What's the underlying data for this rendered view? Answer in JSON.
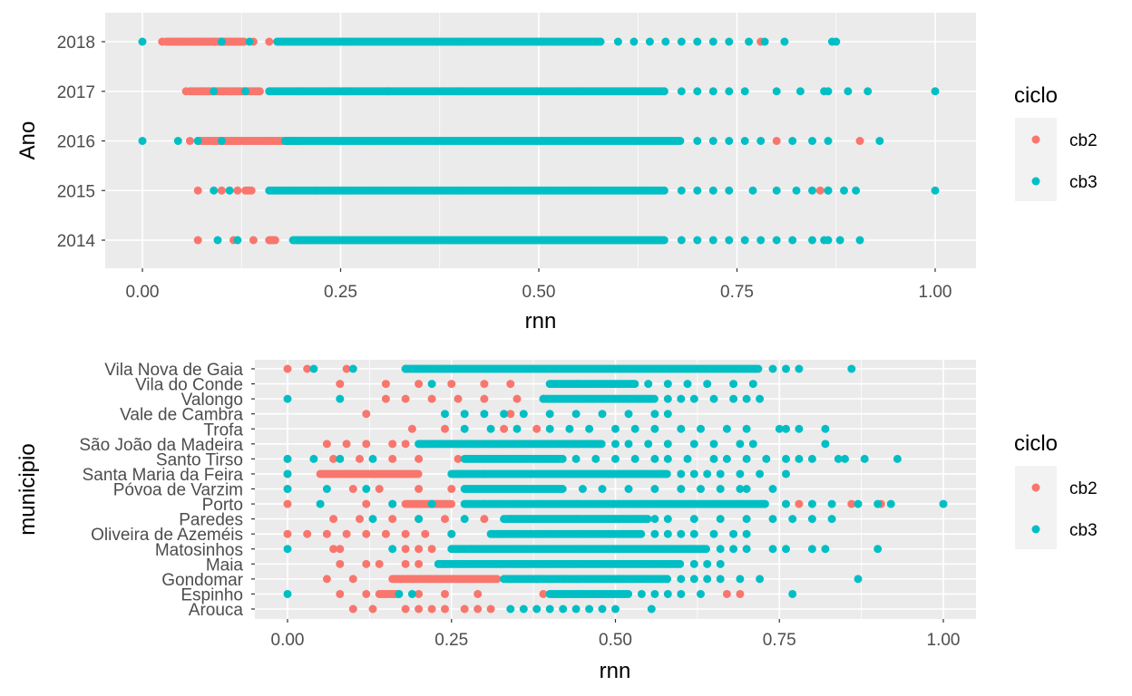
{
  "colors": {
    "cb2": "#F8766D",
    "cb3": "#00BFC4",
    "panel": "#EBEBEB",
    "grid": "#FFFFFF"
  },
  "chart_data": [
    {
      "type": "scatter",
      "xlabel": "rnn",
      "ylabel": "Ano",
      "xlim": [
        0,
        1
      ],
      "x_ticks": [
        "0.00",
        "0.25",
        "0.50",
        "0.75",
        "1.00"
      ],
      "categories": [
        "2014",
        "2015",
        "2016",
        "2017",
        "2018"
      ],
      "grid": true,
      "legend": {
        "title": "ciclo",
        "position": "right",
        "entries": [
          "cb2",
          "cb3"
        ]
      },
      "series": [
        {
          "name": "cb2",
          "dense": [
            {
              "y": "2018",
              "x": [
                0.03,
                0.13
              ]
            },
            {
              "y": "2017",
              "x": [
                0.06,
                0.15
              ]
            },
            {
              "y": "2016",
              "x": [
                0.07,
                0.2
              ]
            },
            {
              "y": "2015",
              "x": [
                0.13,
                0.14
              ]
            },
            {
              "y": "2014",
              "x": [
                0.16,
                0.17
              ]
            }
          ],
          "points": [
            {
              "y": "2018",
              "x": [
                0.025,
                0.05,
                0.07,
                0.1,
                0.14,
                0.16,
                0.78
              ]
            },
            {
              "y": "2017",
              "x": [
                0.055,
                0.075,
                0.1,
                0.12,
                0.2,
                0.24,
                0.31
              ]
            },
            {
              "y": "2016",
              "x": [
                0.06,
                0.12,
                0.16,
                0.24,
                0.29,
                0.36,
                0.8,
                0.905
              ]
            },
            {
              "y": "2015",
              "x": [
                0.07,
                0.1,
                0.12,
                0.22,
                0.855
              ]
            },
            {
              "y": "2014",
              "x": [
                0.07,
                0.115,
                0.14,
                0.21,
                0.24
              ]
            }
          ]
        },
        {
          "name": "cb3",
          "dense": [
            {
              "y": "2018",
              "x": [
                0.17,
                0.58
              ]
            },
            {
              "y": "2017",
              "x": [
                0.16,
                0.66
              ]
            },
            {
              "y": "2016",
              "x": [
                0.18,
                0.68
              ]
            },
            {
              "y": "2015",
              "x": [
                0.16,
                0.66
              ]
            },
            {
              "y": "2014",
              "x": [
                0.19,
                0.66
              ]
            }
          ],
          "points": [
            {
              "y": "2018",
              "x": [
                0.0,
                0.1,
                0.135,
                0.6,
                0.62,
                0.64,
                0.66,
                0.68,
                0.7,
                0.72,
                0.74,
                0.765,
                0.785,
                0.81,
                0.87,
                0.875
              ]
            },
            {
              "y": "2017",
              "x": [
                0.09,
                0.13,
                0.68,
                0.7,
                0.72,
                0.74,
                0.76,
                0.8,
                0.83,
                0.86,
                0.89,
                0.915,
                0.865,
                1.0
              ]
            },
            {
              "y": "2016",
              "x": [
                0.0,
                0.045,
                0.07,
                0.1,
                0.7,
                0.72,
                0.74,
                0.76,
                0.78,
                0.82,
                0.845,
                0.865,
                0.93
              ]
            },
            {
              "y": "2015",
              "x": [
                0.09,
                0.11,
                0.68,
                0.7,
                0.72,
                0.74,
                0.77,
                0.8,
                0.825,
                0.845,
                0.865,
                0.885,
                0.9,
                0.865,
                1.0
              ]
            },
            {
              "y": "2014",
              "x": [
                0.095,
                0.12,
                0.68,
                0.7,
                0.72,
                0.74,
                0.76,
                0.78,
                0.8,
                0.82,
                0.845,
                0.865,
                0.88,
                0.86,
                0.905
              ]
            }
          ]
        }
      ]
    },
    {
      "type": "scatter",
      "xlabel": "rnn",
      "ylabel": "municipio",
      "xlim": [
        0,
        1
      ],
      "x_ticks": [
        "0.00",
        "0.25",
        "0.50",
        "0.75",
        "1.00"
      ],
      "categories": [
        "Arouca",
        "Espinho",
        "Gondomar",
        "Maia",
        "Matosinhos",
        "Oliveira de Azeméis",
        "Paredes",
        "Porto",
        "Póvoa de Varzim",
        "Santa Maria da Feira",
        "Santo Tirso",
        "São João da Madeira",
        "Trofa",
        "Vale de Cambra",
        "Valongo",
        "Vila do Conde",
        "Vila Nova de Gaia"
      ],
      "grid": true,
      "legend": {
        "title": "ciclo",
        "position": "right",
        "entries": [
          "cb2",
          "cb3"
        ]
      },
      "series": [
        {
          "name": "cb2",
          "dense": [
            {
              "y": "Gondomar",
              "x": [
                0.16,
                0.32
              ]
            },
            {
              "y": "Porto",
              "x": [
                0.18,
                0.25
              ]
            },
            {
              "y": "Santa Maria da Feira",
              "x": [
                0.05,
                0.2
              ]
            },
            {
              "y": "Espinho",
              "x": [
                0.14,
                0.17
              ]
            }
          ],
          "points": [
            {
              "y": "Arouca",
              "x": [
                0.1,
                0.13,
                0.18,
                0.2,
                0.22,
                0.24,
                0.27,
                0.29,
                0.31
              ]
            },
            {
              "y": "Espinho",
              "x": [
                0.08,
                0.12,
                0.2,
                0.24,
                0.29,
                0.39,
                0.67,
                0.69
              ]
            },
            {
              "y": "Gondomar",
              "x": [
                0.06,
                0.1,
                0.34,
                0.38,
                0.42
              ]
            },
            {
              "y": "Maia",
              "x": [
                0.08,
                0.12,
                0.14,
                0.18,
                0.2,
                0.24
              ]
            },
            {
              "y": "Matosinhos",
              "x": [
                0.07,
                0.08,
                0.18,
                0.2,
                0.22,
                0.28
              ]
            },
            {
              "y": "Oliveira de Azeméis",
              "x": [
                0.0,
                0.03,
                0.06,
                0.09,
                0.12,
                0.15,
                0.18,
                0.21,
                0.25,
                0.33
              ]
            },
            {
              "y": "Paredes",
              "x": [
                0.07,
                0.11,
                0.16,
                0.2,
                0.24,
                0.3,
                0.34
              ]
            },
            {
              "y": "Porto",
              "x": [
                0.0,
                0.12,
                0.16,
                0.3,
                0.78,
                0.86,
                0.905
              ]
            },
            {
              "y": "Póvoa de Varzim",
              "x": [
                0.0,
                0.1,
                0.14,
                0.2,
                0.25
              ]
            },
            {
              "y": "Santa Maria da Feira",
              "x": [
                0.0,
                0.26,
                0.3
              ]
            },
            {
              "y": "Santo Tirso",
              "x": [
                0.0,
                0.07,
                0.11,
                0.16,
                0.2,
                0.26
              ]
            },
            {
              "y": "São João da Madeira",
              "x": [
                0.06,
                0.09,
                0.12,
                0.16,
                0.18
              ]
            },
            {
              "y": "Trofa",
              "x": [
                0.19,
                0.24,
                0.33,
                0.38
              ]
            },
            {
              "y": "Vale de Cambra",
              "x": [
                0.12,
                0.34
              ]
            },
            {
              "y": "Valongo",
              "x": [
                0.15,
                0.18,
                0.22,
                0.26,
                0.3,
                0.35,
                0.39
              ]
            },
            {
              "y": "Vila do Conde",
              "x": [
                0.08,
                0.15,
                0.2,
                0.25,
                0.3,
                0.34
              ]
            },
            {
              "y": "Vila Nova de Gaia",
              "x": [
                0.0,
                0.03,
                0.09,
                0.18,
                0.2,
                0.22,
                0.24
              ]
            }
          ]
        },
        {
          "name": "cb3",
          "dense": [
            {
              "y": "Vila Nova de Gaia",
              "x": [
                0.18,
                0.72
              ]
            },
            {
              "y": "Valongo",
              "x": [
                0.39,
                0.56
              ]
            },
            {
              "y": "Porto",
              "x": [
                0.27,
                0.73
              ]
            },
            {
              "y": "Matosinhos",
              "x": [
                0.25,
                0.64
              ]
            },
            {
              "y": "Maia",
              "x": [
                0.23,
                0.6
              ]
            },
            {
              "y": "Gondomar",
              "x": [
                0.33,
                0.58
              ]
            },
            {
              "y": "Santa Maria da Feira",
              "x": [
                0.25,
                0.58
              ]
            },
            {
              "y": "Paredes",
              "x": [
                0.33,
                0.55
              ]
            },
            {
              "y": "Oliveira de Azeméis",
              "x": [
                0.31,
                0.54
              ]
            },
            {
              "y": "São João da Madeira",
              "x": [
                0.2,
                0.48
              ]
            },
            {
              "y": "Santo Tirso",
              "x": [
                0.27,
                0.42
              ]
            },
            {
              "y": "Espinho",
              "x": [
                0.4,
                0.52
              ]
            },
            {
              "y": "Vila do Conde",
              "x": [
                0.4,
                0.53
              ]
            },
            {
              "y": "Póvoa de Varzim",
              "x": [
                0.27,
                0.42
              ]
            }
          ],
          "points": [
            {
              "y": "Arouca",
              "x": [
                0.34,
                0.36,
                0.38,
                0.4,
                0.42,
                0.44,
                0.46,
                0.48,
                0.5,
                0.555
              ]
            },
            {
              "y": "Espinho",
              "x": [
                0.0,
                0.17,
                0.19,
                0.54,
                0.56,
                0.58,
                0.6,
                0.63,
                0.77
              ]
            },
            {
              "y": "Gondomar",
              "x": [
                0.6,
                0.62,
                0.64,
                0.66,
                0.69,
                0.72,
                0.87
              ]
            },
            {
              "y": "Maia",
              "x": [
                0.62,
                0.64,
                0.66
              ]
            },
            {
              "y": "Matosinhos",
              "x": [
                0.0,
                0.16,
                0.66,
                0.68,
                0.7,
                0.74,
                0.76,
                0.8,
                0.82,
                0.9
              ]
            },
            {
              "y": "Oliveira de Azeméis",
              "x": [
                0.25,
                0.56,
                0.58,
                0.6,
                0.62,
                0.65,
                0.68,
                0.7
              ]
            },
            {
              "y": "Paredes",
              "x": [
                0.13,
                0.2,
                0.27,
                0.56,
                0.58,
                0.62,
                0.66,
                0.7,
                0.74,
                0.77,
                0.8,
                0.83
              ]
            },
            {
              "y": "Porto",
              "x": [
                0.05,
                0.16,
                0.22,
                0.76,
                0.8,
                0.83,
                0.87,
                0.9,
                0.92,
                1.0
              ]
            },
            {
              "y": "Póvoa de Varzim",
              "x": [
                0.0,
                0.06,
                0.12,
                0.45,
                0.48,
                0.52,
                0.56,
                0.6,
                0.63,
                0.66,
                0.69,
                0.7,
                0.74
              ]
            },
            {
              "y": "Santa Maria da Feira",
              "x": [
                0.0,
                0.6,
                0.62,
                0.64,
                0.66,
                0.69,
                0.72,
                0.76
              ]
            },
            {
              "y": "Santo Tirso",
              "x": [
                0.0,
                0.04,
                0.08,
                0.13,
                0.44,
                0.47,
                0.5,
                0.53,
                0.56,
                0.58,
                0.61,
                0.65,
                0.67,
                0.7,
                0.73,
                0.76,
                0.78,
                0.8,
                0.84,
                0.85,
                0.88,
                0.93
              ]
            },
            {
              "y": "São João da Madeira",
              "x": [
                0.5,
                0.52,
                0.55,
                0.58,
                0.62,
                0.65,
                0.69,
                0.71,
                0.82
              ]
            },
            {
              "y": "Trofa",
              "x": [
                0.27,
                0.31,
                0.35,
                0.4,
                0.43,
                0.46,
                0.5,
                0.53,
                0.56,
                0.6,
                0.63,
                0.67,
                0.7,
                0.75,
                0.76,
                0.78,
                0.82
              ]
            },
            {
              "y": "Vale de Cambra",
              "x": [
                0.24,
                0.27,
                0.3,
                0.33,
                0.36,
                0.4,
                0.44,
                0.48,
                0.52,
                0.56,
                0.58
              ]
            },
            {
              "y": "Valongo",
              "x": [
                0.0,
                0.08,
                0.58,
                0.6,
                0.62,
                0.65,
                0.68,
                0.7,
                0.72
              ]
            },
            {
              "y": "Vila do Conde",
              "x": [
                0.22,
                0.55,
                0.58,
                0.61,
                0.64,
                0.68,
                0.71
              ]
            },
            {
              "y": "Vila Nova de Gaia",
              "x": [
                0.04,
                0.1,
                0.74,
                0.76,
                0.78,
                0.86
              ]
            }
          ]
        }
      ]
    }
  ]
}
